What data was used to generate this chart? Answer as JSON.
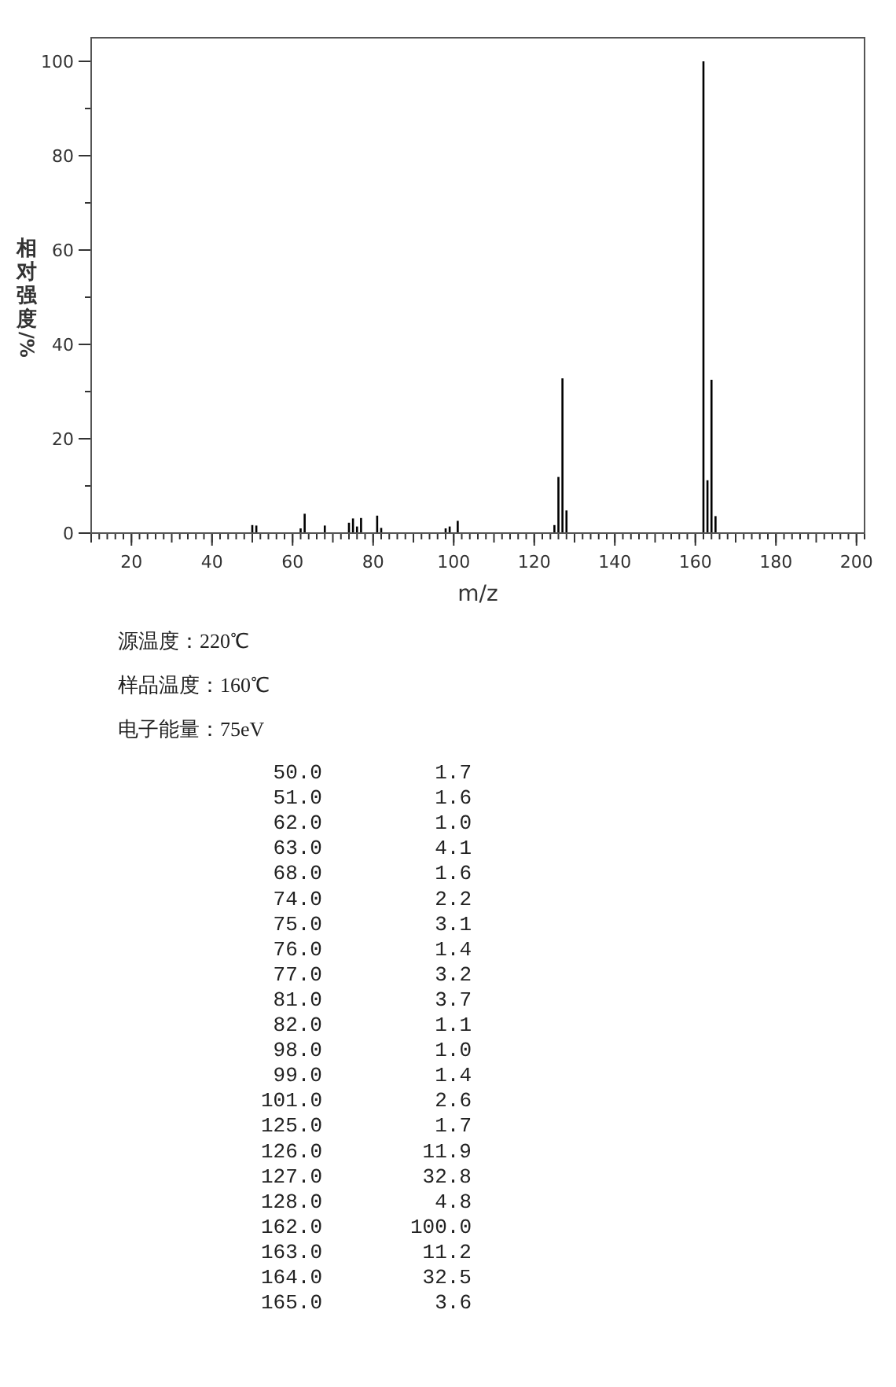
{
  "chart_data": [
    {
      "type": "bar",
      "xlabel": "m/z",
      "ylabel": "相对强度/%",
      "x": [
        50,
        51,
        62,
        63,
        68,
        74,
        75,
        76,
        77,
        81,
        82,
        98,
        99,
        101,
        125,
        126,
        127,
        128,
        162,
        163,
        164,
        165
      ],
      "values": [
        1.7,
        1.6,
        1.0,
        4.1,
        1.6,
        2.2,
        3.1,
        1.4,
        3.2,
        3.7,
        1.1,
        1.0,
        1.4,
        2.6,
        1.7,
        11.9,
        32.8,
        4.8,
        100.0,
        11.2,
        32.5,
        3.6
      ],
      "color": "#000000",
      "xlim": [
        10,
        202
      ],
      "ylim": [
        0,
        105
      ],
      "xticks": [
        20,
        40,
        60,
        80,
        100,
        120,
        140,
        160,
        180,
        200
      ],
      "yticks": [
        0,
        20,
        40,
        60,
        80,
        100
      ],
      "annotations": [
        "源温度：220℃",
        "样品温度：160℃",
        "电子能量：75eV"
      ]
    },
    {
      "type": "other",
      "annotations": [
        "50.0",
        "1.7",
        "51.0",
        "1.6",
        "62.0",
        "1.0",
        "63.0",
        "4.1",
        "68.0",
        "1.6",
        "74.0",
        "2.2",
        "75.0",
        "3.1",
        "76.0",
        "1.4",
        "77.0",
        "3.2",
        "81.0",
        "3.7",
        "82.0",
        "1.1",
        "98.0",
        "1.0",
        "99.0",
        "1.4",
        "101.0",
        "2.6",
        "125.0",
        "1.7",
        "126.0",
        "11.9",
        "127.0",
        "32.8",
        "128.0",
        "4.8",
        "162.0",
        "100.0",
        "163.0",
        "11.2",
        "164.0",
        "32.5",
        "165.0",
        "3.6"
      ]
    }
  ]
}
